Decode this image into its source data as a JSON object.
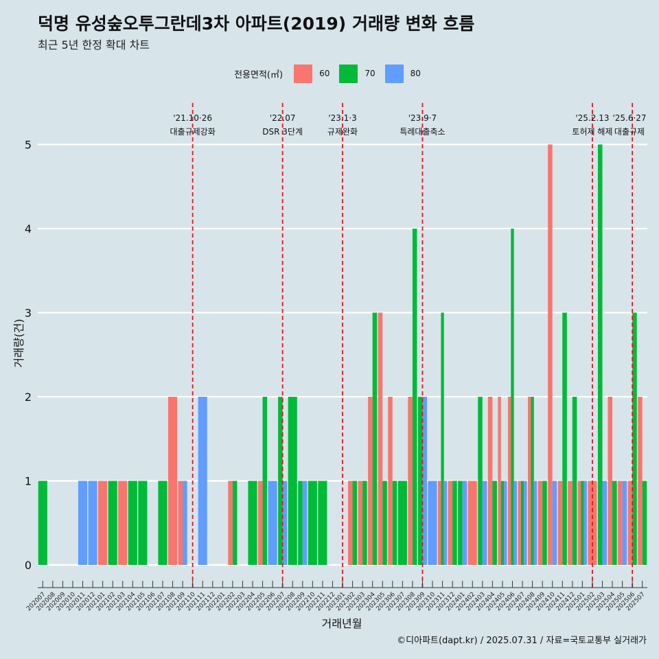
{
  "header": {
    "title": "덕명 유성숲오투그란데3차 아파트(2019) 거래량 변화 흐름",
    "subtitle": "최근 5년 한정 확대 차트"
  },
  "legend": {
    "title": "전용면적(㎡)",
    "items": [
      {
        "label": "60",
        "color": "#f8766d"
      },
      {
        "label": "70",
        "color": "#00ba38"
      },
      {
        "label": "80",
        "color": "#619cff"
      }
    ]
  },
  "caption": "©디아파트(dapt.kr) / 2025.07.31 / 자료=국토교통부 실거래가",
  "chart_data": {
    "type": "bar",
    "xlabel": "거래년월",
    "ylabel": "거래량(건)",
    "ylim": [
      0,
      5
    ],
    "yticks": [
      0,
      1,
      2,
      3,
      4,
      5
    ],
    "grid": true,
    "legend_position": "top",
    "categories": [
      "202007",
      "202008",
      "202009",
      "202010",
      "202011",
      "202012",
      "202101",
      "202102",
      "202103",
      "202104",
      "202105",
      "202106",
      "202107",
      "202108",
      "202109",
      "202110",
      "202111",
      "202112",
      "202201",
      "202202",
      "202203",
      "202204",
      "202205",
      "202206",
      "202207",
      "202208",
      "202209",
      "202210",
      "202211",
      "202212",
      "202301",
      "202302",
      "202303",
      "202304",
      "202305",
      "202306",
      "202307",
      "202308",
      "202309",
      "202310",
      "202311",
      "202312",
      "202401",
      "202402",
      "202403",
      "202404",
      "202405",
      "202406",
      "202407",
      "202408",
      "202409",
      "202410",
      "202411",
      "202412",
      "202501",
      "202502",
      "202503",
      "202504",
      "202505",
      "202506",
      "202507"
    ],
    "bars": [
      {
        "month": "202007",
        "area": "70",
        "value": 1
      },
      {
        "month": "202011",
        "area": "80",
        "value": 1
      },
      {
        "month": "202012",
        "area": "80",
        "value": 1
      },
      {
        "month": "202101",
        "area": "60",
        "value": 1
      },
      {
        "month": "202102",
        "area": "70",
        "value": 1
      },
      {
        "month": "202103",
        "area": "60",
        "value": 1
      },
      {
        "month": "202104",
        "area": "70",
        "value": 1
      },
      {
        "month": "202105",
        "area": "70",
        "value": 1
      },
      {
        "month": "202107",
        "area": "70",
        "value": 1
      },
      {
        "month": "202108",
        "area": "60",
        "value": 2
      },
      {
        "month": "202109",
        "area": "60",
        "value": 1
      },
      {
        "month": "202109",
        "area": "80",
        "value": 1
      },
      {
        "month": "202111",
        "area": "80",
        "value": 2
      },
      {
        "month": "202202",
        "area": "60",
        "value": 1
      },
      {
        "month": "202202",
        "area": "70",
        "value": 1
      },
      {
        "month": "202204",
        "area": "70",
        "value": 1
      },
      {
        "month": "202205",
        "area": "60",
        "value": 1
      },
      {
        "month": "202205",
        "area": "70",
        "value": 2
      },
      {
        "month": "202206",
        "area": "80",
        "value": 1
      },
      {
        "month": "202207",
        "area": "70",
        "value": 2
      },
      {
        "month": "202207",
        "area": "80",
        "value": 1
      },
      {
        "month": "202208",
        "area": "70",
        "value": 2
      },
      {
        "month": "202209",
        "area": "70",
        "value": 1
      },
      {
        "month": "202209",
        "area": "80",
        "value": 1
      },
      {
        "month": "202210",
        "area": "70",
        "value": 1
      },
      {
        "month": "202211",
        "area": "70",
        "value": 1
      },
      {
        "month": "202302",
        "area": "60",
        "value": 1
      },
      {
        "month": "202302",
        "area": "70",
        "value": 1
      },
      {
        "month": "202303",
        "area": "60",
        "value": 1
      },
      {
        "month": "202303",
        "area": "70",
        "value": 1
      },
      {
        "month": "202304",
        "area": "60",
        "value": 2
      },
      {
        "month": "202304",
        "area": "70",
        "value": 3
      },
      {
        "month": "202305",
        "area": "60",
        "value": 3
      },
      {
        "month": "202305",
        "area": "70",
        "value": 1
      },
      {
        "month": "202306",
        "area": "60",
        "value": 2
      },
      {
        "month": "202306",
        "area": "70",
        "value": 1
      },
      {
        "month": "202307",
        "area": "70",
        "value": 1
      },
      {
        "month": "202308",
        "area": "60",
        "value": 2
      },
      {
        "month": "202308",
        "area": "70",
        "value": 4
      },
      {
        "month": "202309",
        "area": "70",
        "value": 2
      },
      {
        "month": "202309",
        "area": "80",
        "value": 2
      },
      {
        "month": "202310",
        "area": "80",
        "value": 1
      },
      {
        "month": "202311",
        "area": "60",
        "value": 1
      },
      {
        "month": "202311",
        "area": "70",
        "value": 3
      },
      {
        "month": "202311",
        "area": "80",
        "value": 1
      },
      {
        "month": "202312",
        "area": "60",
        "value": 1
      },
      {
        "month": "202312",
        "area": "70",
        "value": 1
      },
      {
        "month": "202401",
        "area": "70",
        "value": 1
      },
      {
        "month": "202401",
        "area": "80",
        "value": 1
      },
      {
        "month": "202402",
        "area": "60",
        "value": 1
      },
      {
        "month": "202403",
        "area": "70",
        "value": 2
      },
      {
        "month": "202403",
        "area": "80",
        "value": 1
      },
      {
        "month": "202404",
        "area": "60",
        "value": 2
      },
      {
        "month": "202404",
        "area": "70",
        "value": 1
      },
      {
        "month": "202405",
        "area": "60",
        "value": 2
      },
      {
        "month": "202405",
        "area": "70",
        "value": 1
      },
      {
        "month": "202405",
        "area": "80",
        "value": 1
      },
      {
        "month": "202406",
        "area": "60",
        "value": 2
      },
      {
        "month": "202406",
        "area": "70",
        "value": 4
      },
      {
        "month": "202406",
        "area": "80",
        "value": 1
      },
      {
        "month": "202407",
        "area": "60",
        "value": 1
      },
      {
        "month": "202407",
        "area": "70",
        "value": 1
      },
      {
        "month": "202407",
        "area": "80",
        "value": 1
      },
      {
        "month": "202408",
        "area": "60",
        "value": 2
      },
      {
        "month": "202408",
        "area": "70",
        "value": 2
      },
      {
        "month": "202408",
        "area": "80",
        "value": 1
      },
      {
        "month": "202409",
        "area": "60",
        "value": 1
      },
      {
        "month": "202409",
        "area": "70",
        "value": 1
      },
      {
        "month": "202410",
        "area": "60",
        "value": 5
      },
      {
        "month": "202410",
        "area": "80",
        "value": 1
      },
      {
        "month": "202411",
        "area": "60",
        "value": 1
      },
      {
        "month": "202411",
        "area": "70",
        "value": 3
      },
      {
        "month": "202412",
        "area": "60",
        "value": 1
      },
      {
        "month": "202412",
        "area": "70",
        "value": 2
      },
      {
        "month": "202501",
        "area": "60",
        "value": 1
      },
      {
        "month": "202501",
        "area": "70",
        "value": 1
      },
      {
        "month": "202501",
        "area": "80",
        "value": 1
      },
      {
        "month": "202502",
        "area": "60",
        "value": 1
      },
      {
        "month": "202503",
        "area": "70",
        "value": 5
      },
      {
        "month": "202503",
        "area": "80",
        "value": 1
      },
      {
        "month": "202504",
        "area": "60",
        "value": 2
      },
      {
        "month": "202504",
        "area": "70",
        "value": 1
      },
      {
        "month": "202505",
        "area": "60",
        "value": 1
      },
      {
        "month": "202505",
        "area": "80",
        "value": 1
      },
      {
        "month": "202506",
        "area": "60",
        "value": 1
      },
      {
        "month": "202506",
        "area": "70",
        "value": 3
      },
      {
        "month": "202507",
        "area": "60",
        "value": 2
      },
      {
        "month": "202507",
        "area": "70",
        "value": 1
      }
    ],
    "events": [
      {
        "month": "202110",
        "date": "'21.10·26",
        "label": "대출규제강화"
      },
      {
        "month": "202207",
        "date": "'22.07",
        "label": "DSR 3단계"
      },
      {
        "month": "202301",
        "date": "'23.1·3",
        "label": "규제완화"
      },
      {
        "month": "202309",
        "date": "'23.9·7",
        "label": "특례대출축소"
      },
      {
        "month": "202502",
        "date": "'25.2.13",
        "label": "토허제 해제"
      },
      {
        "month": "202506",
        "date": "'25.6·27",
        "label": "대출규제"
      }
    ]
  }
}
